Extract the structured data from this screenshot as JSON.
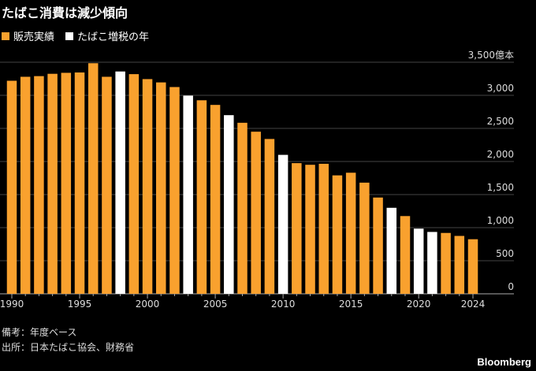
{
  "chart_data": {
    "type": "bar",
    "title": "たばこ消費は減少傾向",
    "unit_label": "億本",
    "legend": [
      {
        "name": "販売実績",
        "color": "#F9A12E"
      },
      {
        "name": "たばこ増税の年",
        "color": "#FFFFFF"
      }
    ],
    "categories": [
      1990,
      1991,
      1992,
      1993,
      1994,
      1995,
      1996,
      1997,
      1998,
      1999,
      2000,
      2001,
      2002,
      2003,
      2004,
      2005,
      2006,
      2007,
      2008,
      2009,
      2010,
      2011,
      2012,
      2013,
      2014,
      2015,
      2016,
      2017,
      2018,
      2019,
      2020,
      2021,
      2022,
      2023,
      2024
    ],
    "values": [
      3220,
      3280,
      3290,
      3325,
      3340,
      3345,
      3485,
      3280,
      3360,
      3320,
      3245,
      3195,
      3125,
      2995,
      2925,
      2855,
      2700,
      2585,
      2450,
      2340,
      2100,
      1975,
      1950,
      1965,
      1790,
      1830,
      1680,
      1455,
      1300,
      1175,
      985,
      935,
      920,
      875,
      825
    ],
    "tax_increase_years": [
      1998,
      2003,
      2006,
      2010,
      2018,
      2020,
      2021
    ],
    "x_tick_labels": [
      "1990",
      "1995",
      "2000",
      "2005",
      "2010",
      "2015",
      "2020",
      "2024"
    ],
    "y_tick_labels": [
      "0",
      "500",
      "1,000",
      "1,500",
      "2,000",
      "2,500",
      "3,000",
      "3,500億本"
    ],
    "y_ticks": [
      0,
      500,
      1000,
      1500,
      2000,
      2500,
      3000,
      3500
    ],
    "ylim": [
      0,
      3500
    ],
    "grid": true,
    "legend_position": "top-left"
  },
  "notes": [
    "備考：年度ベース",
    "出所：日本たばこ協会、財務省"
  ],
  "brand": "Bloomberg"
}
